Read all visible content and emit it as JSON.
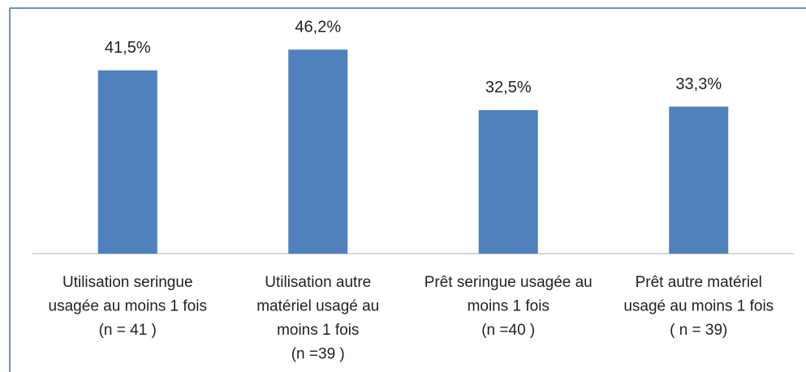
{
  "chart_data": {
    "type": "bar",
    "categories": [
      [
        "Utilisation seringue",
        "usagée au moins 1 fois",
        "(n = 41 )"
      ],
      [
        "Utilisation autre",
        "matériel usagé au",
        "moins 1 fois",
        "(n =39 )"
      ],
      [
        "Prêt seringue usagée au",
        "moins 1 fois",
        "(n =40 )"
      ],
      [
        "Prêt autre matériel",
        "usagé au moins 1 fois",
        "( n = 39)"
      ]
    ],
    "values": [
      41.5,
      46.2,
      32.5,
      33.3
    ],
    "value_labels": [
      "41,5%",
      "46,2%",
      "32,5%",
      "33,3%"
    ],
    "color": "#4f81bd"
  }
}
